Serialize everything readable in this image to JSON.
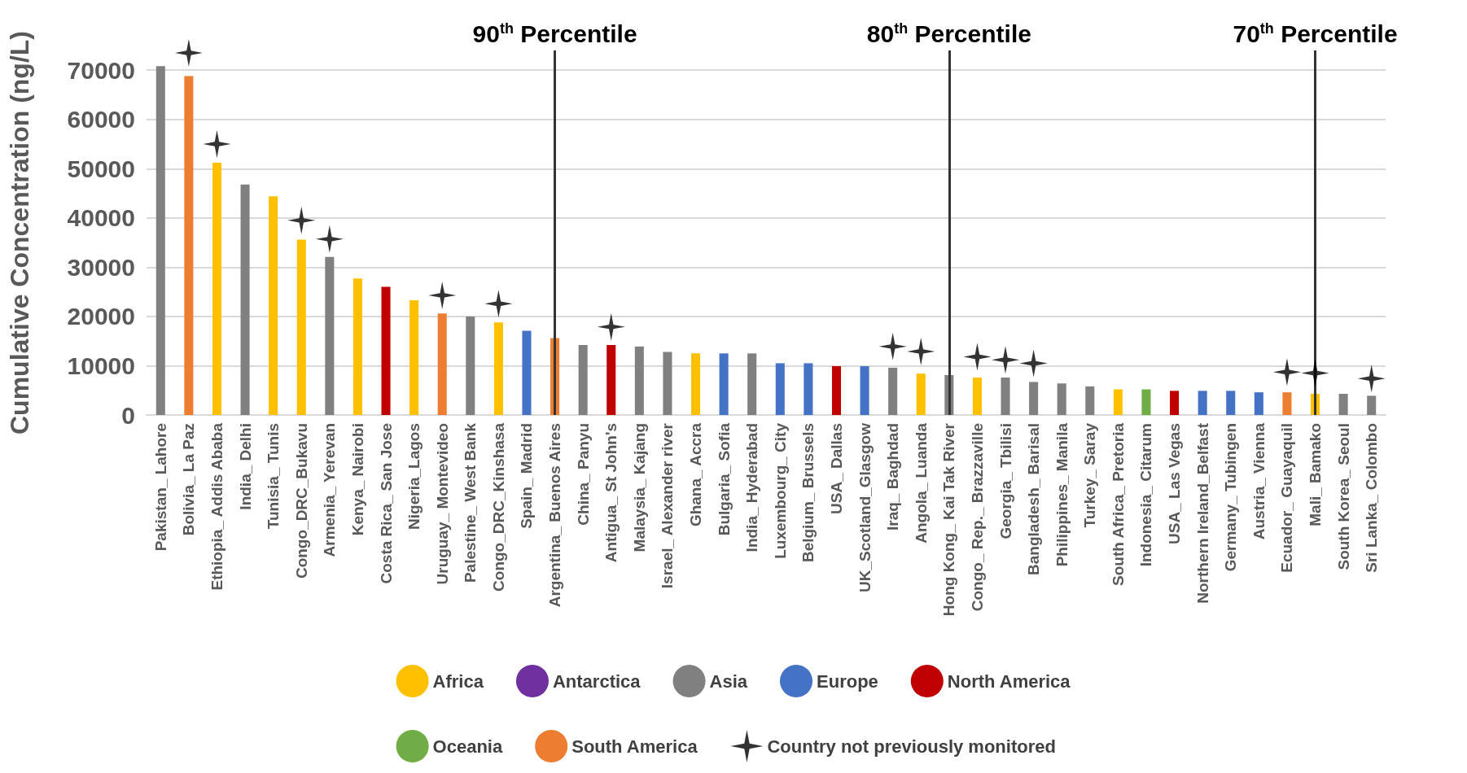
{
  "chart_data": {
    "type": "bar",
    "ylabel": "Cumulative Concentration (ng/L)",
    "stacked": true,
    "categories": [
      "Pakistan_ Lahore",
      "Bolivia_ La Paz",
      "Ethiopia_ Addis Ababa",
      "India_ Delhi",
      "Tunisia_ Tunis",
      "Congo_DRC_Bukavu",
      "Armenia_ Yerevan",
      "Kenya_ Nairobi",
      "Costa Rica_ San Jose",
      "Nigeria_Lagos",
      "Uruguay_ Montevideo",
      "Palestine_ West Bank",
      "Congo_DRC_Kinshasa",
      "Spain_ Madrid",
      "Argentina_ Buenos Aires",
      "China_ Panyu",
      "Antigua_ St John's",
      "Malaysia_ Kajang",
      "Israel_ Alexander river",
      "Ghana_ Accra",
      "Bulgaria_ Sofia",
      "India_ Hyderabad",
      "Luxembourg_ City",
      "Belgium_ Brussels",
      "USA_ Dallas",
      "UK_Scotland_Glasgow",
      "Iraq_ Baghdad",
      "Angola_ Luanda",
      "Hong Kong_ Kai Tak River",
      "Congo_ Rep._ Brazzaville",
      "Georgia_ Tbilisi",
      "Bangladesh_ Barisal",
      "Philippines_ Manila",
      "Turkey_ Saray",
      "South Africa_ Pretoria",
      "Indonesia_ Citarum",
      "USA_ Las Vegas",
      "Northern Ireland_Belfast",
      "Germany_ Tubingen",
      "Austria_ Vienna",
      "Ecuador_ Guayaquil",
      "Mali_ Bamako",
      "South Korea_ Seoul",
      "Sri Lanka_ Colombo"
    ],
    "series": [
      {
        "name": "Africa",
        "color": "#ffc000",
        "values": [
          null,
          null,
          51200,
          null,
          44400,
          35600,
          null,
          27700,
          null,
          23300,
          null,
          null,
          18800,
          null,
          null,
          null,
          null,
          null,
          null,
          12500,
          null,
          null,
          null,
          null,
          null,
          null,
          null,
          8400,
          null,
          7600,
          null,
          null,
          null,
          null,
          5200,
          null,
          null,
          null,
          null,
          null,
          null,
          4300,
          null,
          null
        ]
      },
      {
        "name": "Antarctica",
        "color": "#7030a0",
        "values": [
          null,
          null,
          null,
          null,
          null,
          null,
          null,
          null,
          null,
          null,
          null,
          null,
          null,
          null,
          null,
          null,
          null,
          null,
          null,
          null,
          null,
          null,
          null,
          null,
          null,
          null,
          null,
          null,
          null,
          null,
          null,
          null,
          null,
          null,
          null,
          null,
          null,
          null,
          null,
          null,
          null,
          null,
          null,
          null
        ]
      },
      {
        "name": "Asia",
        "color": "#808080",
        "values": [
          70800,
          null,
          null,
          46800,
          null,
          null,
          32100,
          null,
          null,
          null,
          null,
          20000,
          null,
          null,
          null,
          14200,
          null,
          13900,
          12800,
          null,
          null,
          12500,
          null,
          null,
          null,
          null,
          9600,
          null,
          8100,
          null,
          7600,
          6700,
          6400,
          5800,
          null,
          null,
          null,
          null,
          null,
          null,
          null,
          null,
          4300,
          3900
        ]
      },
      {
        "name": "Europe",
        "color": "#4472c4",
        "values": [
          null,
          null,
          null,
          null,
          null,
          null,
          null,
          null,
          null,
          null,
          null,
          null,
          null,
          17100,
          null,
          null,
          null,
          null,
          null,
          null,
          12500,
          null,
          10500,
          10500,
          null,
          9900,
          null,
          null,
          null,
          null,
          null,
          null,
          null,
          null,
          null,
          null,
          null,
          4900,
          4900,
          4600,
          null,
          null,
          null,
          null
        ]
      },
      {
        "name": "North America",
        "color": "#c00000",
        "values": [
          null,
          null,
          null,
          null,
          null,
          null,
          null,
          null,
          26000,
          null,
          null,
          null,
          null,
          null,
          null,
          null,
          14200,
          null,
          null,
          null,
          null,
          null,
          null,
          null,
          9900,
          null,
          null,
          null,
          null,
          null,
          null,
          null,
          null,
          null,
          null,
          null,
          4900,
          null,
          null,
          null,
          null,
          null,
          null,
          null
        ]
      },
      {
        "name": "Oceania",
        "color": "#70ad47",
        "values": [
          null,
          null,
          null,
          null,
          null,
          null,
          null,
          null,
          null,
          null,
          null,
          null,
          null,
          null,
          null,
          null,
          null,
          null,
          null,
          null,
          null,
          null,
          null,
          null,
          null,
          null,
          null,
          null,
          null,
          null,
          null,
          null,
          null,
          null,
          null,
          5200,
          null,
          null,
          null,
          null,
          null,
          null,
          null,
          null
        ]
      },
      {
        "name": "South America",
        "color": "#ed7d31",
        "values": [
          null,
          68800,
          null,
          null,
          null,
          null,
          null,
          null,
          null,
          null,
          20600,
          null,
          null,
          null,
          15600,
          null,
          null,
          null,
          null,
          null,
          null,
          null,
          null,
          null,
          null,
          null,
          null,
          null,
          null,
          null,
          null,
          null,
          null,
          null,
          null,
          null,
          null,
          null,
          null,
          null,
          4600,
          null,
          null,
          null
        ]
      },
      {
        "name": "Country not previously monitored",
        "type": "scatter",
        "marker": "star",
        "color": "#000000",
        "x": [
          "Bolivia_ La Paz",
          "Ethiopia_ Addis Ababa",
          "Congo_DRC_Bukavu",
          "Armenia_ Yerevan",
          "Uruguay_ Montevideo",
          "Congo_DRC_Kinshasa",
          "Antigua_ St John's",
          "Iraq_ Baghdad",
          "Angola_ Luanda",
          "Congo_ Rep._ Brazzaville",
          "Georgia_ Tbilisi",
          "Bangladesh_ Barisal",
          "Ecuador_ Guayaquil",
          "Mali_ Bamako",
          "Sri Lanka_ Colombo"
        ],
        "values": [
          73500,
          55000,
          39500,
          35700,
          24300,
          22600,
          17900,
          13900,
          12900,
          11800,
          11200,
          10500,
          8700,
          8500,
          7400
        ]
      }
    ],
    "ylim": [
      0,
      74000
    ],
    "yticks": [
      0,
      10000,
      20000,
      30000,
      40000,
      50000,
      60000,
      70000
    ],
    "grid": "y",
    "legend": "bottom",
    "ref_lines": [
      {
        "axis": "x",
        "value": "Argentina_ Buenos Aires",
        "label": "90$^{th}$ Percentile",
        "color": "#333333"
      },
      {
        "axis": "x",
        "value": "Hong Kong_ Kai Tak River",
        "label": "80$^{th}$ Percentile",
        "color": "#333333"
      },
      {
        "axis": "x",
        "value": "Mali_ Bamako",
        "label": "70$^{th}$ Percentile",
        "color": "#333333"
      }
    ]
  }
}
